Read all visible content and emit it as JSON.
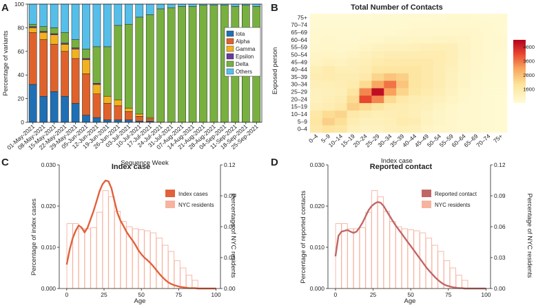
{
  "panels": {
    "a": "A",
    "b": "B",
    "c": "C",
    "d": "D"
  },
  "chart_data": [
    {
      "id": "A",
      "type": "bar",
      "stacked": true,
      "title": "",
      "xlabel": "Sequence Week",
      "ylabel": "Percentage of variants",
      "ylim": [
        0,
        100
      ],
      "yticks": [
        "0",
        "20",
        "40",
        "60",
        "80",
        "100"
      ],
      "categories": [
        "01-May-2021",
        "08-May-2021",
        "15-May-2021",
        "22-May-2021",
        "29-May-2021",
        "05-Jun-2021",
        "12-Jun-2021",
        "19-Jun-2021",
        "26-Jun-2021",
        "03-Jul-2021",
        "10-Jul-2021",
        "17-Jul-2021",
        "24-Jul-2021",
        "31-Jul-2021",
        "07-Aug-2021",
        "14-Aug-2021",
        "21-Aug-2021",
        "28-Aug-2021",
        "04-Sep-2021",
        "11-Sep-2021",
        "18-Sep-2021",
        "25-Sep-2021"
      ],
      "series": [
        {
          "name": "Iota",
          "color": "#1f6fb4",
          "values": [
            32,
            22,
            26,
            22,
            16,
            6,
            4,
            2,
            2,
            2,
            1,
            1,
            0,
            0,
            0,
            0,
            0,
            0,
            0,
            0,
            0,
            0
          ]
        },
        {
          "name": "Alpha",
          "color": "#e0622b",
          "values": [
            44,
            48,
            40,
            38,
            38,
            35,
            20,
            14,
            12,
            7,
            4,
            2,
            0,
            0,
            0,
            0,
            0,
            0,
            0,
            0,
            0,
            0
          ]
        },
        {
          "name": "Gamma",
          "color": "#f2b21f",
          "values": [
            4,
            6,
            8,
            6,
            8,
            12,
            8,
            6,
            5,
            3,
            2,
            1,
            0,
            0,
            0,
            0,
            0,
            0,
            0,
            0,
            0,
            0
          ]
        },
        {
          "name": "Epsilon",
          "color": "#6b3a9c",
          "values": [
            1,
            1,
            1,
            1,
            1,
            1,
            1,
            0,
            0,
            0,
            0,
            0,
            0,
            0,
            0,
            0,
            0,
            0,
            0,
            0,
            0,
            0
          ]
        },
        {
          "name": "Delta",
          "color": "#78b03f",
          "values": [
            2,
            4,
            5,
            9,
            7,
            8,
            31,
            42,
            63,
            71,
            82,
            87,
            96,
            97,
            98,
            98,
            99,
            99,
            99,
            98,
            99,
            98
          ]
        },
        {
          "name": "Others",
          "color": "#55bfea",
          "values": [
            17,
            19,
            20,
            24,
            30,
            38,
            36,
            36,
            18,
            17,
            11,
            9,
            4,
            3,
            2,
            2,
            1,
            1,
            1,
            2,
            1,
            2
          ]
        }
      ],
      "legend": "top-right"
    },
    {
      "id": "B",
      "type": "heatmap",
      "title": "Total Number of Contacts",
      "xlabel": "Index case",
      "ylabel": "Exposed person",
      "categories": [
        "0–4",
        "5–9",
        "10–14",
        "15–19",
        "20–24",
        "25–29",
        "30–34",
        "35–39",
        "40–44",
        "45–49",
        "50–54",
        "55–59",
        "60–64",
        "65–69",
        "70–74",
        "75+"
      ],
      "values": [
        [
          1000,
          1250,
          1100,
          600,
          500,
          500,
          600,
          700,
          600,
          400,
          300,
          250,
          200,
          150,
          100,
          80
        ],
        [
          1150,
          1700,
          1400,
          800,
          600,
          600,
          700,
          900,
          800,
          500,
          350,
          250,
          200,
          150,
          100,
          80
        ],
        [
          1050,
          1450,
          1600,
          1000,
          800,
          700,
          750,
          800,
          700,
          500,
          350,
          250,
          200,
          150,
          100,
          80
        ],
        [
          650,
          800,
          1000,
          1700,
          1500,
          1200,
          900,
          800,
          700,
          600,
          450,
          300,
          200,
          150,
          100,
          80
        ],
        [
          550,
          650,
          800,
          1500,
          3500,
          2800,
          1500,
          1000,
          800,
          700,
          550,
          400,
          250,
          150,
          100,
          80
        ],
        [
          550,
          600,
          700,
          1200,
          2800,
          4300,
          2500,
          1600,
          1100,
          900,
          700,
          500,
          300,
          200,
          120,
          90
        ],
        [
          650,
          700,
          750,
          900,
          1500,
          2400,
          3000,
          1900,
          1200,
          1000,
          800,
          550,
          350,
          200,
          130,
          100
        ],
        [
          800,
          900,
          800,
          800,
          1000,
          1600,
          1900,
          1700,
          1200,
          1000,
          800,
          550,
          350,
          220,
          140,
          100
        ],
        [
          700,
          900,
          700,
          700,
          800,
          1100,
          1200,
          1200,
          1200,
          1000,
          800,
          600,
          400,
          250,
          150,
          100
        ],
        [
          450,
          550,
          500,
          600,
          700,
          900,
          1000,
          1000,
          1000,
          1000,
          850,
          650,
          400,
          250,
          150,
          100
        ],
        [
          350,
          400,
          350,
          450,
          550,
          700,
          800,
          800,
          800,
          850,
          850,
          700,
          450,
          300,
          200,
          120
        ],
        [
          250,
          300,
          250,
          300,
          400,
          500,
          550,
          550,
          600,
          650,
          700,
          650,
          450,
          300,
          200,
          150
        ],
        [
          200,
          250,
          200,
          200,
          250,
          300,
          350,
          350,
          400,
          400,
          450,
          450,
          400,
          300,
          200,
          150
        ],
        [
          150,
          150,
          150,
          150,
          150,
          200,
          200,
          220,
          250,
          250,
          300,
          300,
          300,
          250,
          180,
          130
        ],
        [
          100,
          100,
          100,
          100,
          100,
          120,
          130,
          140,
          150,
          150,
          200,
          200,
          200,
          180,
          150,
          110
        ],
        [
          80,
          80,
          80,
          80,
          80,
          90,
          100,
          100,
          100,
          100,
          120,
          150,
          150,
          130,
          110,
          100
        ]
      ],
      "colorbar_ticks": [
        "1000",
        "2000",
        "3000",
        "4000"
      ],
      "colorbar_range": [
        0,
        4500
      ]
    },
    {
      "id": "C",
      "type": "bar",
      "overlay": "line",
      "title": "Index case",
      "xlabel": "Age",
      "ylabel": "Percentage of index cases",
      "y2label": "Percentage of NYC residents",
      "xlim": [
        -5,
        103
      ],
      "ylim": [
        0,
        0.03
      ],
      "y2lim": [
        0,
        0.12
      ],
      "xticks": [
        "0",
        "25",
        "50",
        "75",
        "100"
      ],
      "yticks": [
        "0.000",
        "0.010",
        "0.020",
        "0.030"
      ],
      "y2ticks": [
        "0.00",
        "0.03",
        "0.06",
        "0.09",
        "0.12"
      ],
      "bar_ages": [
        2,
        6,
        10,
        14,
        18,
        22,
        26,
        30,
        34,
        38,
        42,
        46,
        50,
        54,
        58,
        62,
        66,
        70,
        74,
        78,
        82,
        86
      ],
      "nyc_residents": [
        0.063,
        0.063,
        0.058,
        0.058,
        0.059,
        0.074,
        0.095,
        0.089,
        0.075,
        0.065,
        0.06,
        0.058,
        0.057,
        0.056,
        0.054,
        0.049,
        0.042,
        0.036,
        0.027,
        0.02,
        0.013,
        0.008
      ],
      "line_x": [
        0,
        2,
        4,
        6,
        8,
        10,
        12,
        14,
        16,
        18,
        20,
        22,
        24,
        26,
        28,
        30,
        32,
        34,
        36,
        38,
        40,
        42,
        44,
        46,
        48,
        50,
        52,
        54,
        56,
        58,
        60,
        62,
        64,
        66,
        68,
        70,
        72,
        74,
        76,
        78,
        80,
        82,
        84,
        86,
        88,
        90,
        92,
        94,
        96,
        98,
        100
      ],
      "index_cases": [
        0.0058,
        0.0095,
        0.0122,
        0.014,
        0.0153,
        0.0148,
        0.0136,
        0.0148,
        0.0168,
        0.0188,
        0.0212,
        0.0236,
        0.0253,
        0.0262,
        0.026,
        0.0243,
        0.0212,
        0.0183,
        0.0165,
        0.0152,
        0.0138,
        0.0127,
        0.0117,
        0.0106,
        0.0093,
        0.0083,
        0.0075,
        0.0069,
        0.0062,
        0.0054,
        0.0045,
        0.0036,
        0.0028,
        0.0021,
        0.0015,
        0.0011,
        0.0008,
        0.0006,
        0.0004,
        0.0003,
        0.0002,
        0.0001,
        0.0001,
        0.0001,
        0.0,
        0.0,
        0.0,
        0.0,
        0.0,
        0.0,
        0.0
      ],
      "legend": {
        "index_cases": "Index cases",
        "nyc": "NYC residents"
      },
      "colors": {
        "line": "#e0613a",
        "bars": "#f6b39f"
      }
    },
    {
      "id": "D",
      "type": "bar",
      "overlay": "line",
      "title": "Reported contact",
      "xlabel": "Age",
      "ylabel": "Percentage of reported contacts",
      "y2label": "Percentage of NYC residents",
      "xlim": [
        -5,
        103
      ],
      "ylim": [
        0,
        0.03
      ],
      "y2lim": [
        0,
        0.12
      ],
      "xticks": [
        "0",
        "25",
        "50",
        "75",
        "100"
      ],
      "yticks": [
        "0.000",
        "0.010",
        "0.020",
        "0.030"
      ],
      "y2ticks": [
        "0.00",
        "0.03",
        "0.06",
        "0.09",
        "0.12"
      ],
      "bar_ages": [
        2,
        6,
        10,
        14,
        18,
        22,
        26,
        30,
        34,
        38,
        42,
        46,
        50,
        54,
        58,
        62,
        66,
        70,
        74,
        78,
        82,
        86
      ],
      "nyc_residents": [
        0.063,
        0.063,
        0.058,
        0.058,
        0.059,
        0.074,
        0.095,
        0.089,
        0.075,
        0.065,
        0.06,
        0.058,
        0.057,
        0.056,
        0.054,
        0.049,
        0.042,
        0.036,
        0.027,
        0.02,
        0.013,
        0.008
      ],
      "line_x": [
        0,
        2,
        4,
        6,
        8,
        10,
        12,
        14,
        16,
        18,
        20,
        22,
        24,
        26,
        28,
        30,
        32,
        34,
        36,
        38,
        40,
        42,
        44,
        46,
        48,
        50,
        52,
        54,
        56,
        58,
        60,
        62,
        64,
        66,
        68,
        70,
        72,
        74,
        76,
        78,
        80,
        82,
        84,
        86,
        88,
        90,
        92,
        94,
        96,
        98,
        100
      ],
      "reported_contact": [
        0.0078,
        0.0128,
        0.0138,
        0.014,
        0.0142,
        0.0138,
        0.0135,
        0.0138,
        0.0148,
        0.016,
        0.0175,
        0.019,
        0.02,
        0.0206,
        0.021,
        0.0208,
        0.02,
        0.0188,
        0.0176,
        0.0164,
        0.0153,
        0.0143,
        0.0133,
        0.0123,
        0.0113,
        0.0103,
        0.0093,
        0.0083,
        0.0073,
        0.0063,
        0.0053,
        0.0044,
        0.0036,
        0.0028,
        0.0021,
        0.0015,
        0.001,
        0.0007,
        0.0005,
        0.0003,
        0.0002,
        0.0001,
        0.0001,
        0.0,
        0.0,
        0.0,
        0.0,
        0.0,
        0.0,
        0.0,
        0.0
      ],
      "legend": {
        "reported_contact": "Reported contact",
        "nyc": "NYC residents"
      },
      "colors": {
        "line": "#c06666",
        "bars": "#f6b39f"
      }
    }
  ]
}
